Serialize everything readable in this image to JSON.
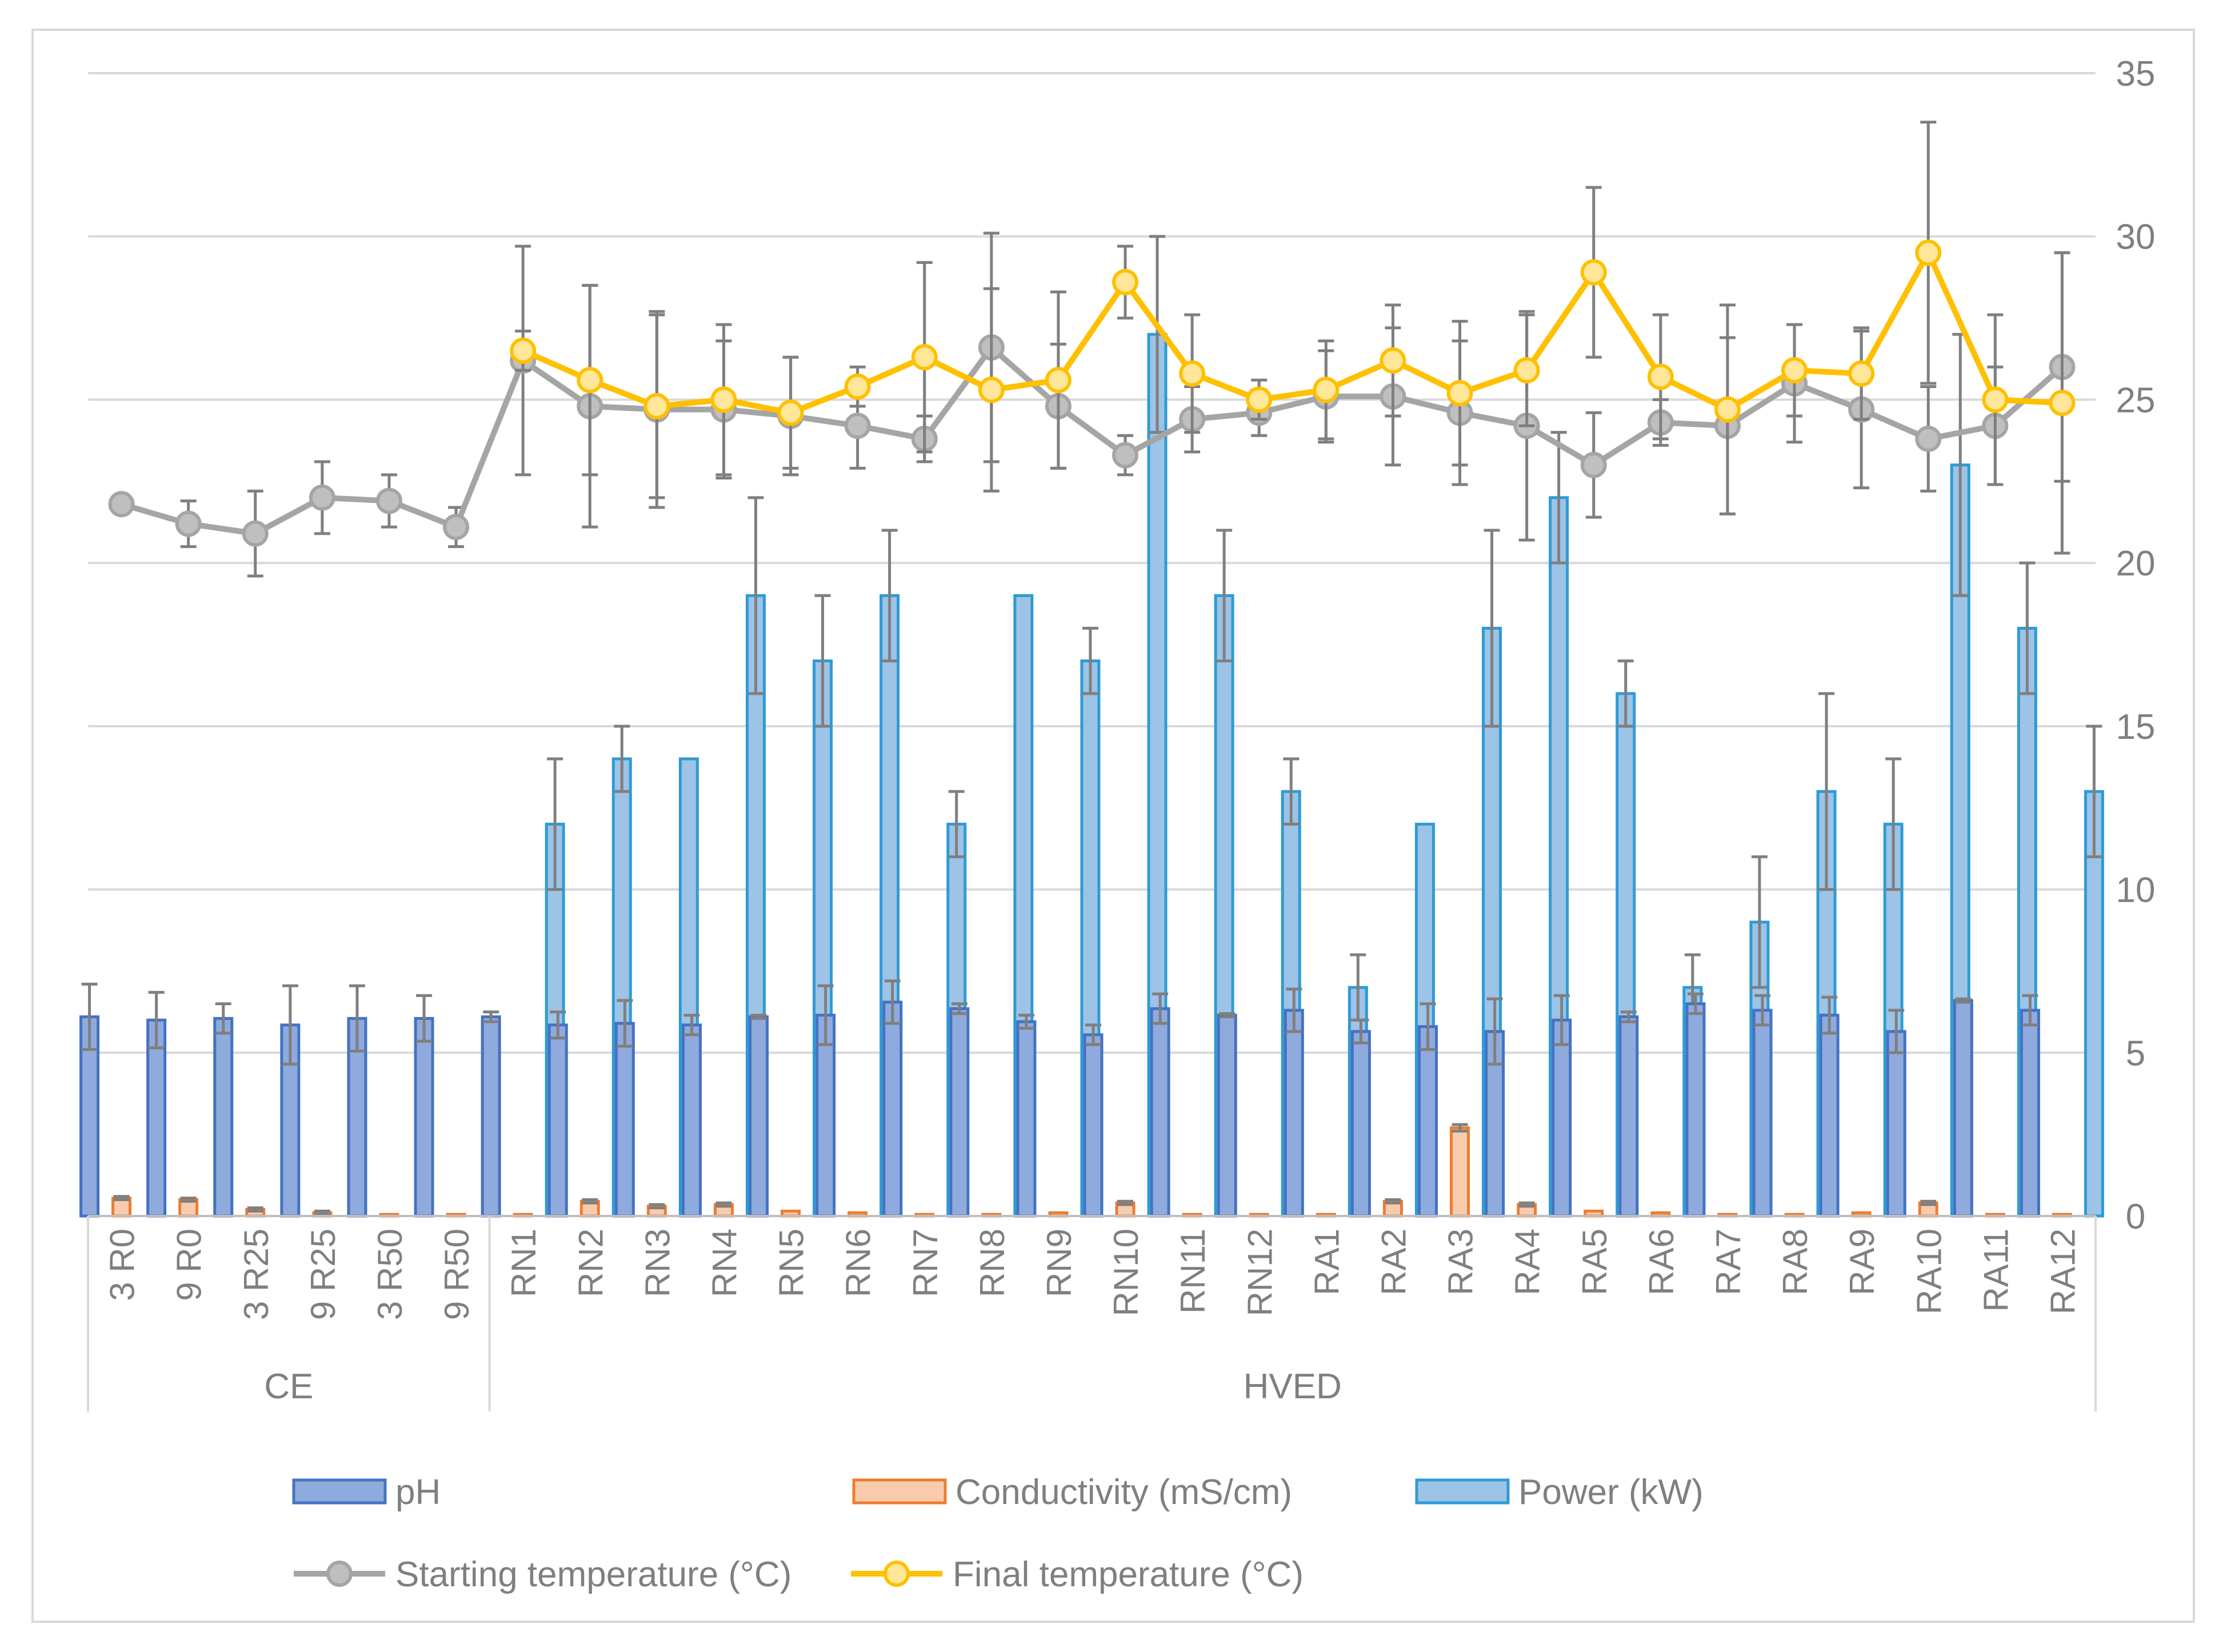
{
  "chart_data": {
    "type": "bar",
    "categories": [
      "3 R0",
      "9 R0",
      "3 R25",
      "9 R25",
      "3 R50",
      "9 R50",
      "RN1",
      "RN2",
      "RN3",
      "RN4",
      "RN5",
      "RN6",
      "RN7",
      "RN8",
      "RN9",
      "RN10",
      "RN11",
      "RN12",
      "RA1",
      "RA2",
      "RA3",
      "RA4",
      "RA5",
      "RA6",
      "RA7",
      "RA8",
      "RA9",
      "RA10",
      "RA11",
      "RA12"
    ],
    "groups": [
      {
        "label": "CE",
        "count": 6
      },
      {
        "label": "HVED",
        "count": 24
      }
    ],
    "yaxis": {
      "side": "right",
      "min": 0,
      "max": 35,
      "ticks": [
        "0",
        "5",
        "10",
        "15",
        "20",
        "25",
        "30",
        "35"
      ]
    },
    "grid": true,
    "legend_position": "bottom",
    "series": [
      {
        "name": "pH",
        "kind": "bar",
        "color": "#4472c4",
        "fill": "#8faadc",
        "values": [
          6.1,
          6.0,
          6.05,
          5.85,
          6.05,
          6.05,
          6.1,
          5.85,
          5.9,
          5.85,
          6.1,
          6.15,
          6.55,
          6.35,
          5.95,
          5.55,
          6.35,
          6.15,
          6.3,
          5.65,
          5.8,
          5.65,
          6.0,
          6.1,
          6.5,
          6.3,
          6.15,
          5.65,
          6.6,
          6.3
        ],
        "errors": [
          1.0,
          0.85,
          0.45,
          1.2,
          1.0,
          0.7,
          0.15,
          0.4,
          0.7,
          0.3,
          0.05,
          0.9,
          0.65,
          0.15,
          0.2,
          0.3,
          0.45,
          0.05,
          0.65,
          0.35,
          0.7,
          1.0,
          0.75,
          0.15,
          0.3,
          0.45,
          0.55,
          0.65,
          0.05,
          0.45
        ]
      },
      {
        "name": "Conductivity (mS/cm)",
        "kind": "bar",
        "color": "#ed7d31",
        "fill": "#f8cbad",
        "values": [
          0.55,
          0.5,
          0.2,
          0.1,
          0.05,
          0.05,
          0.05,
          0.45,
          0.3,
          0.35,
          0.15,
          0.1,
          0.05,
          0.05,
          0.1,
          0.4,
          0.05,
          0.05,
          0.05,
          0.45,
          2.7,
          0.35,
          0.15,
          0.1,
          0.05,
          0.05,
          0.1,
          0.4,
          0.05,
          0.05
        ],
        "errors": [
          0.05,
          0.05,
          0.05,
          0.05,
          0,
          0,
          0,
          0.05,
          0.05,
          0.05,
          0,
          0,
          0,
          0,
          0,
          0.05,
          0,
          0,
          0,
          0.05,
          0.1,
          0.05,
          0,
          0,
          0,
          0,
          0,
          0.05,
          0,
          0
        ]
      },
      {
        "name": "Power (kW)",
        "kind": "bar",
        "color": "#2e9bd6",
        "fill": "#9dc3e6",
        "values": [
          null,
          null,
          null,
          null,
          null,
          null,
          12,
          14,
          14,
          19,
          17,
          19,
          12,
          19,
          17,
          27,
          19,
          13,
          7,
          12,
          18,
          22,
          16,
          7,
          9,
          13,
          12,
          23,
          18,
          13
        ],
        "errors": [
          null,
          null,
          null,
          null,
          null,
          null,
          2,
          1,
          0,
          3,
          2,
          2,
          1,
          0,
          1,
          3,
          2,
          1,
          1,
          0,
          3,
          2,
          1,
          1,
          2,
          3,
          2,
          4,
          2,
          2
        ]
      },
      {
        "name": "Starting temperature (°C)",
        "kind": "line",
        "color": "#a5a5a5",
        "marker_fill": "#bfbfbf",
        "values": [
          21.8,
          21.2,
          20.9,
          22.0,
          21.9,
          21.1,
          26.2,
          24.8,
          24.7,
          24.7,
          24.5,
          24.2,
          23.8,
          26.6,
          24.8,
          23.3,
          24.4,
          24.6,
          25.1,
          25.1,
          24.6,
          24.2,
          23.0,
          24.3,
          24.2,
          25.5,
          24.7,
          23.8,
          24.2,
          26.0
        ],
        "errors": [
          0,
          0.7,
          1.3,
          1.1,
          0.8,
          0.6,
          3.5,
          3.7,
          3.0,
          2.1,
          1.8,
          1.3,
          0.7,
          3.5,
          1.9,
          0.6,
          1.0,
          0.7,
          1.4,
          2.1,
          2.2,
          3.5,
          1.6,
          0.7,
          2.7,
          1.8,
          2.4,
          1.6,
          1.8,
          3.5
        ]
      },
      {
        "name": "Final temperature (°C)",
        "kind": "line",
        "color": "#ffc000",
        "marker_fill": "#ffe699",
        "values": [
          null,
          null,
          null,
          null,
          null,
          null,
          26.5,
          25.6,
          24.8,
          25.0,
          24.6,
          25.4,
          26.3,
          25.3,
          25.6,
          28.6,
          25.8,
          25.0,
          25.3,
          26.2,
          25.2,
          25.9,
          28.9,
          25.7,
          24.7,
          25.9,
          25.8,
          29.5,
          25.0,
          24.9
        ],
        "errors": [
          null,
          null,
          null,
          null,
          null,
          null,
          0.6,
          2.9,
          2.8,
          2.3,
          1.7,
          0.6,
          2.9,
          3.1,
          2.7,
          1.1,
          1.8,
          0.6,
          1.5,
          1.7,
          2.2,
          1.7,
          2.6,
          1.9,
          3.2,
          1.4,
          1.4,
          4.0,
          2.6,
          4.6
        ]
      }
    ]
  }
}
